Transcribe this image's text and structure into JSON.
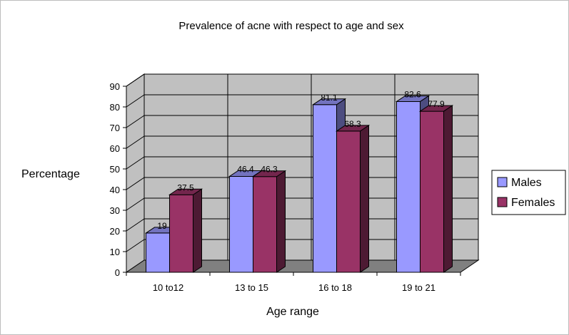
{
  "chart_data": {
    "type": "bar",
    "title": "Prevalence of acne with respect to age and sex",
    "xlabel": "Age range",
    "ylabel": "Percentage",
    "categories": [
      "10 to12",
      "13 to 15",
      "16 to 18",
      "19 to 21"
    ],
    "series": [
      {
        "name": "Males",
        "values": [
          19,
          46.4,
          81.1,
          82.6
        ],
        "labels": [
          "19",
          "46.4",
          "81.1",
          "82.6"
        ],
        "color": "#9999ff"
      },
      {
        "name": "Females",
        "values": [
          37.5,
          46.3,
          68.3,
          77.9
        ],
        "labels": [
          "37.5",
          "46.3",
          "68.3",
          "77.9"
        ],
        "color": "#993366"
      }
    ],
    "ylim": [
      0,
      90
    ],
    "yticks": [
      0,
      10,
      20,
      30,
      40,
      50,
      60,
      70,
      80,
      90
    ],
    "grid": true,
    "legend_position": "right",
    "wall_color": "#c0c0c0",
    "floor_color": "#808080",
    "three_d": true
  }
}
